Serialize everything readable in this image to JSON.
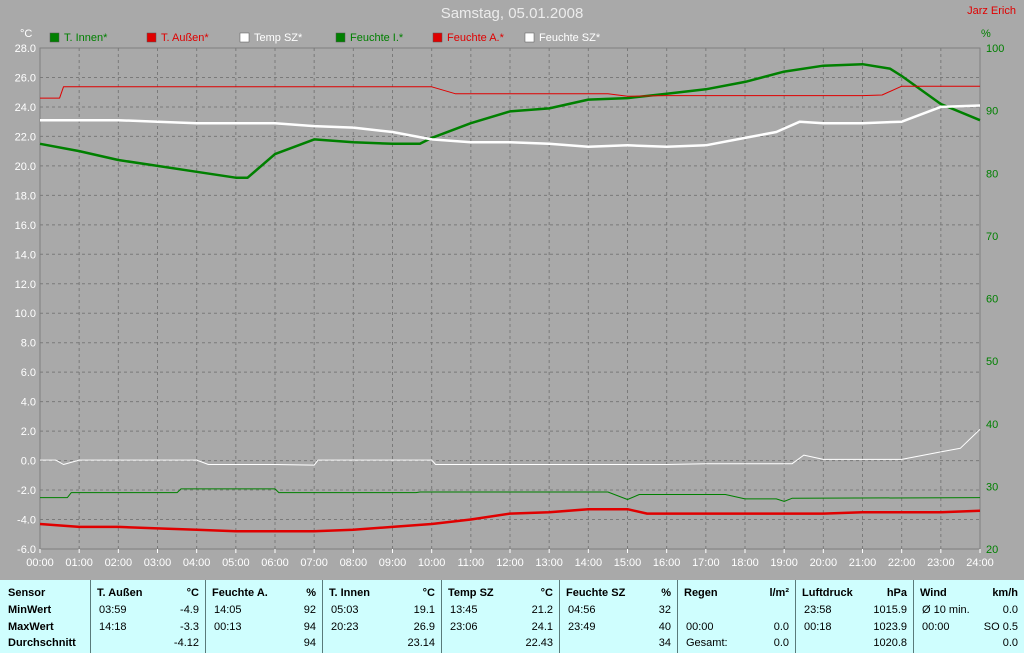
{
  "title": "Samstag, 05.01.2008",
  "author": "Jarz Erich",
  "legend": [
    {
      "label": "T. Innen*",
      "color": "#008000"
    },
    {
      "label": "T. Außen*",
      "color": "#e00000"
    },
    {
      "label": "Temp SZ*",
      "color": "#ffffff"
    },
    {
      "label": "Feuchte I.*",
      "color": "#008000"
    },
    {
      "label": "Feuchte A.*",
      "color": "#e00000"
    },
    {
      "label": "Feuchte SZ*",
      "color": "#ffffff"
    }
  ],
  "chart_data": {
    "type": "line",
    "title": "Samstag, 05.01.2008",
    "x_ticks": [
      "00:00",
      "01:00",
      "02:00",
      "03:00",
      "04:00",
      "05:00",
      "06:00",
      "07:00",
      "08:00",
      "09:00",
      "10:00",
      "11:00",
      "12:00",
      "13:00",
      "14:00",
      "15:00",
      "16:00",
      "17:00",
      "18:00",
      "19:00",
      "20:00",
      "21:00",
      "22:00",
      "23:00",
      "24:00"
    ],
    "y_left": {
      "unit": "°C",
      "min": -6,
      "max": 28,
      "step": 2,
      "ticks": [
        "-6.0",
        "-4.0",
        "-2.0",
        "0.0",
        "2.0",
        "4.0",
        "6.0",
        "8.0",
        "10.0",
        "12.0",
        "14.0",
        "16.0",
        "18.0",
        "20.0",
        "22.0",
        "24.0",
        "26.0",
        "28.0"
      ]
    },
    "y_right": {
      "unit": "%",
      "min": 20,
      "max": 100,
      "step": 10,
      "ticks": [
        "20",
        "30",
        "40",
        "50",
        "60",
        "70",
        "80",
        "90",
        "100"
      ]
    },
    "grid": true,
    "series": [
      {
        "name": "T. Innen*",
        "axis": "left",
        "color": "#008000",
        "width": 2.5,
        "points": [
          [
            0,
            21.5
          ],
          [
            1,
            21.0
          ],
          [
            2,
            20.4
          ],
          [
            3,
            20.0
          ],
          [
            4,
            19.6
          ],
          [
            5,
            19.2
          ],
          [
            5.3,
            19.2
          ],
          [
            6,
            20.8
          ],
          [
            7,
            21.8
          ],
          [
            8,
            21.6
          ],
          [
            9,
            21.5
          ],
          [
            9.7,
            21.5
          ],
          [
            10,
            21.9
          ],
          [
            11,
            22.9
          ],
          [
            12,
            23.7
          ],
          [
            13,
            23.9
          ],
          [
            14,
            24.5
          ],
          [
            15,
            24.6
          ],
          [
            16,
            24.9
          ],
          [
            17,
            25.2
          ],
          [
            18,
            25.7
          ],
          [
            19,
            26.4
          ],
          [
            20,
            26.8
          ],
          [
            21,
            26.9
          ],
          [
            21.7,
            26.6
          ],
          [
            22,
            26.1
          ],
          [
            23,
            24.2
          ],
          [
            24,
            23.1
          ]
        ]
      },
      {
        "name": "Temp SZ*",
        "axis": "left",
        "color": "#ffffff",
        "width": 2.5,
        "points": [
          [
            0,
            23.1
          ],
          [
            2,
            23.1
          ],
          [
            3,
            23.0
          ],
          [
            4,
            22.9
          ],
          [
            6,
            22.9
          ],
          [
            7,
            22.7
          ],
          [
            8,
            22.6
          ],
          [
            9,
            22.3
          ],
          [
            10,
            21.8
          ],
          [
            11,
            21.6
          ],
          [
            12,
            21.6
          ],
          [
            13,
            21.5
          ],
          [
            14,
            21.3
          ],
          [
            15,
            21.4
          ],
          [
            16,
            21.3
          ],
          [
            17,
            21.4
          ],
          [
            18,
            21.9
          ],
          [
            18.8,
            22.3
          ],
          [
            19.4,
            23.0
          ],
          [
            20,
            22.9
          ],
          [
            21,
            22.9
          ],
          [
            22,
            23.0
          ],
          [
            23,
            24.0
          ],
          [
            24,
            24.1
          ]
        ]
      },
      {
        "name": "Feuchte A.*",
        "axis": "right",
        "color": "#e00000",
        "width": 1,
        "points": [
          [
            0,
            92.0
          ],
          [
            0.5,
            92.0
          ],
          [
            0.6,
            93.8
          ],
          [
            10,
            93.8
          ],
          [
            10.6,
            92.7
          ],
          [
            14.5,
            92.7
          ],
          [
            15,
            92.3
          ],
          [
            16,
            92.4
          ],
          [
            21,
            92.4
          ],
          [
            21.5,
            92.5
          ],
          [
            22,
            93.9
          ],
          [
            24,
            93.9
          ]
        ]
      },
      {
        "name": "T. Außen*",
        "axis": "left",
        "color": "#e00000",
        "width": 2.5,
        "points": [
          [
            0,
            -4.3
          ],
          [
            1,
            -4.5
          ],
          [
            2,
            -4.5
          ],
          [
            3,
            -4.6
          ],
          [
            4,
            -4.7
          ],
          [
            5,
            -4.8
          ],
          [
            6,
            -4.8
          ],
          [
            7,
            -4.8
          ],
          [
            8,
            -4.7
          ],
          [
            9,
            -4.5
          ],
          [
            10,
            -4.3
          ],
          [
            11,
            -4.0
          ],
          [
            12,
            -3.6
          ],
          [
            13,
            -3.5
          ],
          [
            14,
            -3.3
          ],
          [
            15,
            -3.3
          ],
          [
            15.5,
            -3.6
          ],
          [
            17,
            -3.6
          ],
          [
            19,
            -3.6
          ],
          [
            20,
            -3.6
          ],
          [
            21,
            -3.5
          ],
          [
            22,
            -3.5
          ],
          [
            23,
            -3.5
          ],
          [
            24,
            -3.4
          ]
        ]
      },
      {
        "name": "Feuchte SZ*",
        "axis": "right",
        "color": "#ffffff",
        "width": 1,
        "points": [
          [
            0,
            34.2
          ],
          [
            0.4,
            34.2
          ],
          [
            0.6,
            33.5
          ],
          [
            1,
            34.2
          ],
          [
            4,
            34.2
          ],
          [
            4.3,
            33.5
          ],
          [
            6,
            33.5
          ],
          [
            7,
            33.4
          ],
          [
            7.1,
            34.2
          ],
          [
            10,
            34.2
          ],
          [
            10.1,
            33.5
          ],
          [
            16,
            33.5
          ],
          [
            17,
            33.6
          ],
          [
            19.2,
            33.6
          ],
          [
            19.5,
            35.0
          ],
          [
            20,
            34.3
          ],
          [
            22,
            34.3
          ],
          [
            23,
            35.5
          ],
          [
            23.5,
            36.1
          ],
          [
            24,
            39.1
          ]
        ]
      },
      {
        "name": "Feuchte I.*",
        "axis": "right",
        "color": "#008000",
        "width": 1,
        "points": [
          [
            0,
            28.2
          ],
          [
            0.7,
            28.2
          ],
          [
            0.8,
            29.0
          ],
          [
            3.5,
            29.0
          ],
          [
            3.6,
            29.6
          ],
          [
            6,
            29.6
          ],
          [
            6.1,
            29.0
          ],
          [
            9.6,
            29.0
          ],
          [
            9.7,
            29.1
          ],
          [
            14.5,
            29.1
          ],
          [
            15,
            27.9
          ],
          [
            15.3,
            28.7
          ],
          [
            17.5,
            28.7
          ],
          [
            18,
            28.0
          ],
          [
            18.8,
            28.0
          ],
          [
            19,
            27.6
          ],
          [
            19.2,
            28.1
          ],
          [
            24,
            28.2
          ]
        ]
      }
    ]
  },
  "stats": {
    "row_labels": {
      "header": "Sensor",
      "min": "MinWert",
      "max": "MaxWert",
      "avg": "Durchschnitt"
    },
    "columns": [
      {
        "name": "T. Außen",
        "unit": "°C",
        "min_time": "03:59",
        "min_val": "-4.9",
        "max_time": "14:18",
        "max_val": "-3.3",
        "avg_label": "",
        "avg_val": "-4.12"
      },
      {
        "name": "Feuchte A.",
        "unit": "%",
        "min_time": "14:05",
        "min_val": "92",
        "max_time": "00:13",
        "max_val": "94",
        "avg_label": "",
        "avg_val": "94"
      },
      {
        "name": "T. Innen",
        "unit": "°C",
        "min_time": "05:03",
        "min_val": "19.1",
        "max_time": "20:23",
        "max_val": "26.9",
        "avg_label": "",
        "avg_val": "23.14"
      },
      {
        "name": "Temp SZ",
        "unit": "°C",
        "min_time": "13:45",
        "min_val": "21.2",
        "max_time": "23:06",
        "max_val": "24.1",
        "avg_label": "",
        "avg_val": "22.43"
      },
      {
        "name": "Feuchte SZ",
        "unit": "%",
        "min_time": "04:56",
        "min_val": "32",
        "max_time": "23:49",
        "max_val": "40",
        "avg_label": "",
        "avg_val": "34"
      },
      {
        "name": "Regen",
        "unit": "l/m²",
        "min_time": "",
        "min_val": "",
        "max_time": "00:00",
        "max_val": "0.0",
        "avg_label": "Gesamt:",
        "avg_val": "0.0"
      },
      {
        "name": "Luftdruck",
        "unit": "hPa",
        "min_time": "23:58",
        "min_val": "1015.9",
        "max_time": "00:18",
        "max_val": "1023.9",
        "avg_label": "",
        "avg_val": "1020.8"
      },
      {
        "name": "Wind",
        "unit": "km/h",
        "min_time": "Ø 10 min.",
        "min_val": "0.0",
        "max_time": "00:00",
        "max_val": "SO 0.5",
        "avg_label": "",
        "avg_val": "0.0"
      }
    ]
  }
}
